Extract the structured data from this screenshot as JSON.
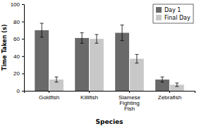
{
  "chart_data": {
    "type": "bar",
    "categories": [
      "Goldfish",
      "Killifish",
      "Siamese\nFighting\nFish",
      "Zebrafish"
    ],
    "series": [
      {
        "name": "Day 1",
        "color": "#696969",
        "values": [
          70,
          61,
          67,
          13
        ],
        "errors": [
          8,
          6,
          9,
          3
        ]
      },
      {
        "name": "Final Day",
        "color": "#c8c8c8",
        "values": [
          13,
          60,
          37,
          7
        ],
        "errors": [
          3,
          5,
          5,
          2
        ]
      }
    ],
    "xlabel": "Species",
    "ylabel": "Time Taken (s)",
    "ylim": [
      0,
      100
    ],
    "yticks": [
      0,
      20,
      40,
      60,
      80,
      100
    ],
    "legend": "upper right",
    "grid": false
  }
}
